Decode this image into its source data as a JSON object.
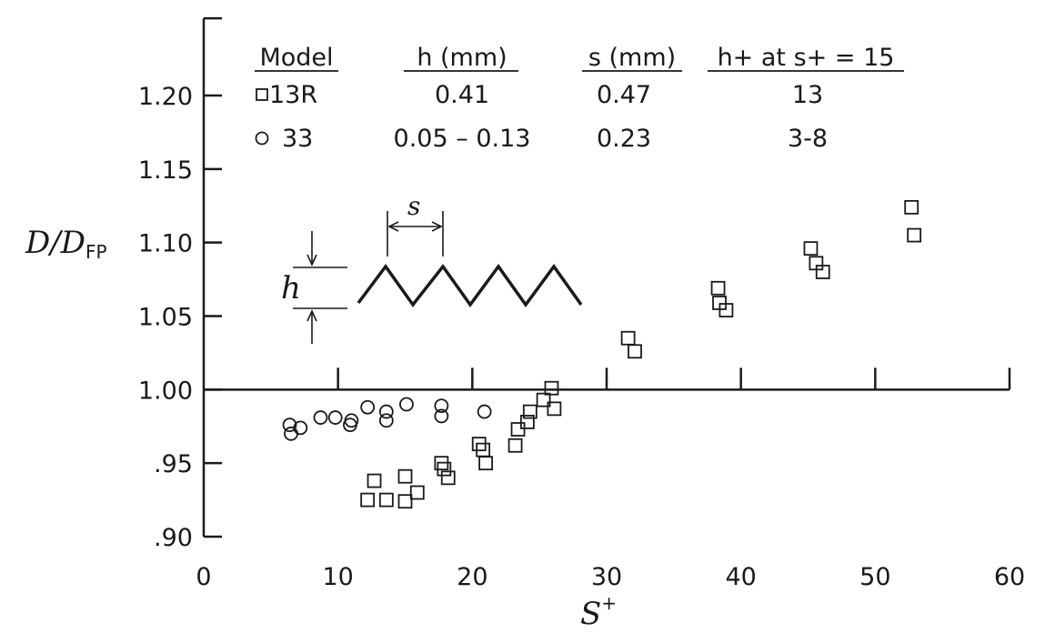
{
  "chart_data": {
    "type": "scatter",
    "xlabel": "S",
    "xlabel_sup": "+",
    "ylabel": "D/D",
    "ylabel_sub": "FP",
    "xlim": [
      0,
      60
    ],
    "ylim": [
      0.9,
      1.25
    ],
    "x_ticks": [
      "0",
      "10",
      "20",
      "30",
      "40",
      "50",
      "60"
    ],
    "y_ticks": [
      {
        "value": 0.9,
        "label": ".90"
      },
      {
        "value": 0.95,
        "label": ".95"
      },
      {
        "value": 1.0,
        "label": "1.00"
      },
      {
        "value": 1.05,
        "label": "1.05"
      },
      {
        "value": 1.1,
        "label": "1.10"
      },
      {
        "value": 1.15,
        "label": "1.15"
      },
      {
        "value": 1.2,
        "label": "1.20"
      }
    ],
    "legend": {
      "headers": [
        "Model",
        "h (mm)",
        "s (mm)",
        "h+ at s+ = 15"
      ],
      "rows": [
        {
          "model": "13R",
          "h": "0.41",
          "s": "0.47",
          "h_plus": "13",
          "marker": "square"
        },
        {
          "model": "33",
          "h": "0.05 – 0.13",
          "s": "0.23",
          "h_plus": "3-8",
          "marker": "circle"
        }
      ]
    },
    "inset_labels": {
      "h": "h",
      "s": "s"
    },
    "series": [
      {
        "name": "13R",
        "marker": "square",
        "points": [
          [
            12.2,
            0.925
          ],
          [
            12.7,
            0.938
          ],
          [
            13.6,
            0.925
          ],
          [
            15.0,
            0.941
          ],
          [
            15.0,
            0.924
          ],
          [
            15.9,
            0.93
          ],
          [
            17.7,
            0.95
          ],
          [
            17.9,
            0.946
          ],
          [
            18.2,
            0.94
          ],
          [
            20.5,
            0.963
          ],
          [
            20.8,
            0.959
          ],
          [
            21.0,
            0.95
          ],
          [
            23.2,
            0.962
          ],
          [
            23.4,
            0.973
          ],
          [
            24.1,
            0.978
          ],
          [
            24.3,
            0.985
          ],
          [
            25.3,
            0.993
          ],
          [
            25.9,
            1.001
          ],
          [
            26.1,
            0.987
          ],
          [
            31.6,
            1.035
          ],
          [
            32.1,
            1.026
          ],
          [
            38.3,
            1.069
          ],
          [
            38.4,
            1.059
          ],
          [
            38.9,
            1.054
          ],
          [
            45.2,
            1.096
          ],
          [
            45.6,
            1.086
          ],
          [
            46.1,
            1.08
          ],
          [
            52.7,
            1.124
          ],
          [
            52.9,
            1.105
          ]
        ]
      },
      {
        "name": "33",
        "marker": "circle",
        "points": [
          [
            6.4,
            0.976
          ],
          [
            6.5,
            0.97
          ],
          [
            7.2,
            0.974
          ],
          [
            8.7,
            0.981
          ],
          [
            9.8,
            0.981
          ],
          [
            10.9,
            0.976
          ],
          [
            11.0,
            0.979
          ],
          [
            12.2,
            0.988
          ],
          [
            13.6,
            0.985
          ],
          [
            13.6,
            0.979
          ],
          [
            15.1,
            0.99
          ],
          [
            17.7,
            0.989
          ],
          [
            17.7,
            0.982
          ],
          [
            20.9,
            0.985
          ]
        ]
      }
    ]
  }
}
